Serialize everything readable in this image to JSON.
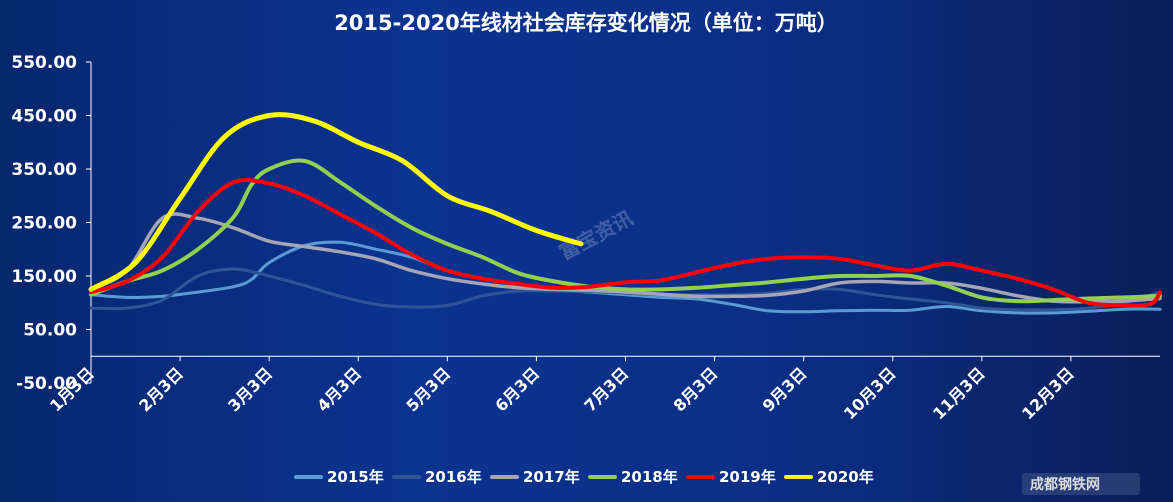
{
  "chart_data": {
    "type": "line",
    "title": "2015-2020年线材社会库存变化情况（单位：万吨）",
    "xlabel": "",
    "ylabel": "",
    "ylim": [
      -50,
      550
    ],
    "yticks": [
      "550.00",
      "450.00",
      "350.00",
      "250.00",
      "150.00",
      "50.00",
      "-50.00"
    ],
    "ytick_values": [
      550,
      450,
      350,
      250,
      150,
      50,
      -50
    ],
    "categories": [
      "1月3日",
      "2月3日",
      "3月3日",
      "4月3日",
      "5月3日",
      "6月3日",
      "7月3日",
      "8月3日",
      "9月3日",
      "10月3日",
      "11月3日",
      "12月3日"
    ],
    "x_range": [
      0,
      12
    ],
    "grid": false,
    "legend_position": "bottom",
    "series": [
      {
        "name": "2015年",
        "color": "#5b9bd5",
        "x": [
          0,
          0.4,
          0.8,
          1.2,
          1.6,
          1.8,
          2.0,
          2.4,
          2.8,
          3.2,
          3.6,
          4.0,
          4.4,
          4.8,
          5.2,
          5.6,
          6.0,
          6.4,
          6.8,
          7.2,
          7.6,
          8.0,
          8.4,
          8.8,
          9.2,
          9.6,
          10.0,
          10.4,
          10.8,
          11.2,
          11.6,
          12.0
        ],
        "y": [
          115,
          110,
          112,
          120,
          130,
          143,
          175,
          207,
          213,
          200,
          185,
          160,
          145,
          133,
          124,
          120,
          115,
          110,
          107,
          97,
          85,
          83,
          85,
          86,
          86,
          93,
          85,
          81,
          81,
          84,
          88,
          88
        ]
      },
      {
        "name": "2016年",
        "color": "#2f5597",
        "x": [
          0,
          0.4,
          0.8,
          1.2,
          1.6,
          2.0,
          2.4,
          2.8,
          3.2,
          3.6,
          4.0,
          4.4,
          4.8,
          5.2,
          5.6,
          6.0,
          6.4,
          6.8,
          7.2,
          7.6,
          8.0,
          8.4,
          8.8,
          9.2,
          9.6,
          10.0,
          10.4,
          10.8,
          11.2,
          11.6,
          12.0
        ],
        "y": [
          90,
          90,
          105,
          150,
          163,
          150,
          132,
          112,
          97,
          92,
          95,
          113,
          122,
          122,
          121,
          118,
          115,
          115,
          115,
          118,
          125,
          125,
          115,
          107,
          100,
          90,
          87,
          87,
          90,
          100,
          120
        ]
      },
      {
        "name": "2017年",
        "color": "#a5a5b5",
        "x": [
          0,
          0.4,
          0.8,
          1.2,
          1.6,
          2.0,
          2.4,
          2.8,
          3.2,
          3.6,
          4.0,
          4.4,
          4.8,
          5.2,
          5.6,
          6.0,
          6.4,
          6.8,
          7.2,
          7.6,
          8.0,
          8.4,
          8.8,
          9.2,
          9.6,
          10.0,
          10.4,
          10.8,
          11.2,
          11.6,
          12.0
        ],
        "y": [
          125,
          160,
          258,
          258,
          240,
          215,
          205,
          195,
          182,
          160,
          145,
          135,
          128,
          125,
          123,
          120,
          116,
          112,
          112,
          114,
          122,
          137,
          140,
          137,
          137,
          127,
          113,
          103,
          102,
          103,
          108
        ]
      },
      {
        "name": "2018年",
        "color": "#92d050",
        "x": [
          0,
          0.4,
          0.8,
          1.2,
          1.6,
          1.8,
          2.0,
          2.4,
          2.8,
          3.2,
          3.6,
          4.0,
          4.4,
          4.8,
          5.2,
          5.6,
          6.0,
          6.4,
          6.8,
          7.2,
          7.6,
          8.0,
          8.4,
          8.8,
          9.2,
          9.6,
          10.0,
          10.4,
          10.8,
          11.2,
          11.6,
          12.0
        ],
        "y": [
          115,
          140,
          160,
          200,
          260,
          320,
          350,
          365,
          325,
          280,
          240,
          210,
          185,
          155,
          140,
          130,
          125,
          125,
          128,
          133,
          138,
          145,
          150,
          150,
          150,
          132,
          110,
          103,
          105,
          108,
          110,
          113
        ]
      },
      {
        "name": "2019年",
        "color": "#ff0000",
        "x": [
          0,
          0.4,
          0.8,
          1.2,
          1.6,
          2.0,
          2.4,
          2.8,
          3.2,
          3.6,
          4.0,
          4.4,
          4.8,
          5.2,
          5.6,
          6.0,
          6.4,
          6.8,
          7.2,
          7.6,
          8.0,
          8.4,
          8.8,
          9.2,
          9.6,
          10.0,
          10.4,
          10.8,
          11.2,
          11.6,
          11.9,
          12.0
        ],
        "y": [
          120,
          140,
          185,
          270,
          325,
          323,
          300,
          265,
          230,
          190,
          160,
          145,
          135,
          128,
          130,
          138,
          142,
          157,
          172,
          182,
          185,
          182,
          170,
          160,
          173,
          160,
          145,
          125,
          100,
          95,
          98,
          120
        ]
      },
      {
        "name": "2020年",
        "color": "#ffff00",
        "x": [
          0,
          0.5,
          1.0,
          1.5,
          2.0,
          2.5,
          3.0,
          3.5,
          4.0,
          4.5,
          5.0,
          5.5
        ],
        "y": [
          125,
          175,
          295,
          410,
          450,
          440,
          400,
          365,
          300,
          270,
          235,
          210
        ]
      }
    ]
  },
  "watermark": "富宝资讯",
  "logo": "成都钢铁网"
}
